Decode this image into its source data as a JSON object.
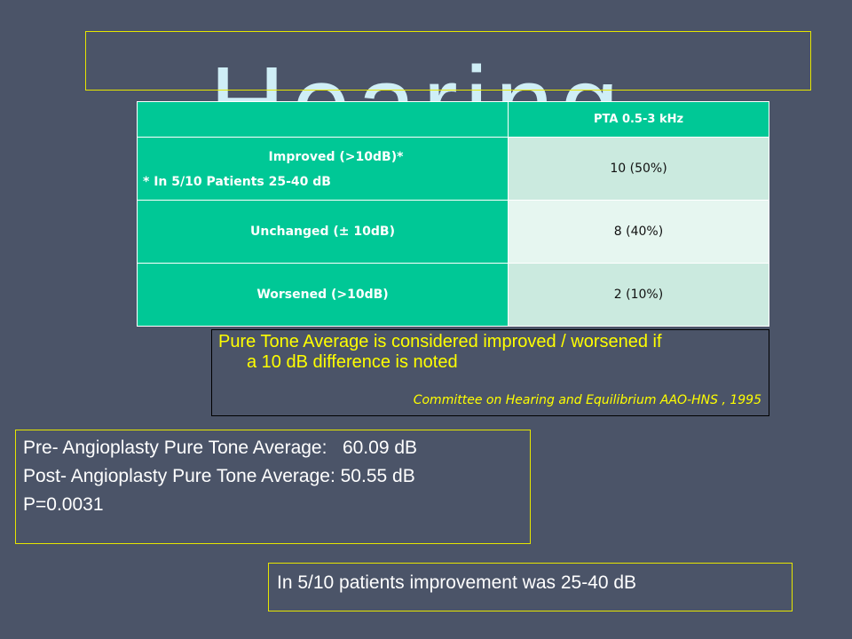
{
  "slide": {
    "title": "Hearing"
  },
  "table": {
    "header": {
      "left": "",
      "right": "PTA 0.5-3 kHz"
    },
    "rows": [
      {
        "label": "Improved  (>10dB)*",
        "note": "* In 5/10 Patients 25-40 dB",
        "value": "10 (50%)"
      },
      {
        "label": "Unchanged (± 10dB)",
        "value": "8 (40%)"
      },
      {
        "label": "Worsened  (>10dB)",
        "value": "2 (10%)"
      }
    ]
  },
  "note": {
    "line1": "Pure Tone Average  is considered improved / worsened if",
    "line2": "a 10 dB difference is noted",
    "citation": "Committee on Hearing and Equilibrium AAO-HNS , 1995"
  },
  "averages": {
    "pre": "Pre- Angioplasty Pure Tone Average:   60.09 dB",
    "post": "Post- Angioplasty Pure Tone Average: 50.55 dB",
    "p_value": "P=0.0031"
  },
  "improvement": {
    "text": "In 5/10 patients improvement was 25-40 dB"
  },
  "colors": {
    "background": "#4b5468",
    "table_green": "#00c896",
    "cell_light": "#cbeadf",
    "cell_lighter": "#e6f6f0",
    "highlight_text": "#ffff00",
    "box_border": "#e6e600"
  }
}
